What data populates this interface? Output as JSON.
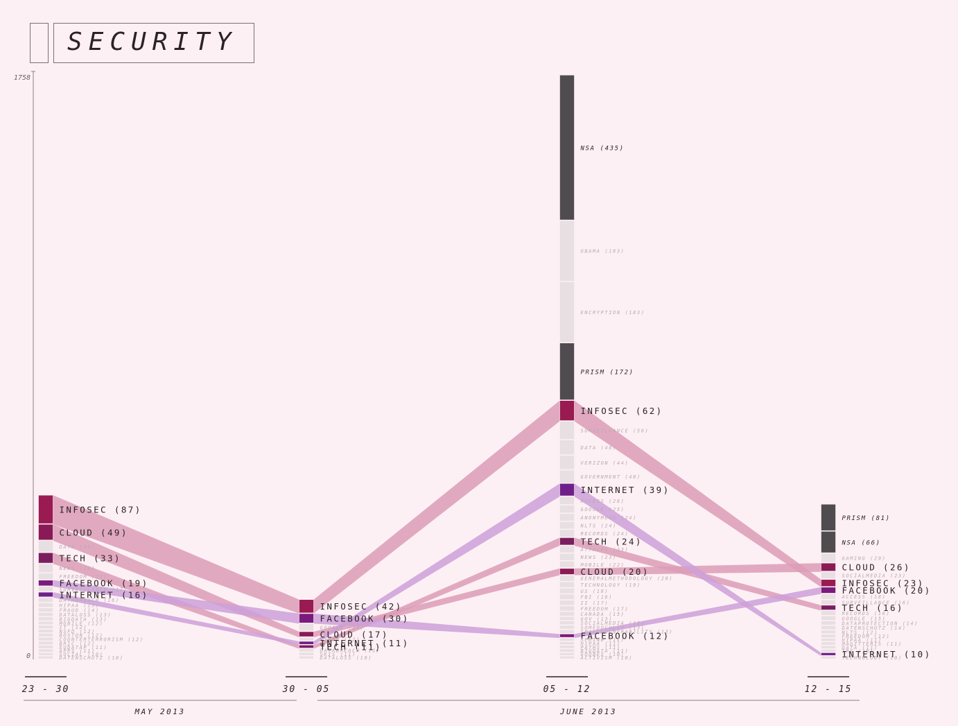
{
  "title": "SECURITY",
  "chart_data": {
    "type": "bump-stream",
    "ylim": [
      0,
      1758
    ],
    "y_tick_labels": [
      "1758",
      "0"
    ],
    "colors": {
      "infosec": "#9a1a52",
      "cloud": "#8a1a55",
      "tech": "#7a1e5e",
      "facebook": "#7a1a7c",
      "internet": "#6e2088",
      "dark": "#4f4b4e",
      "minor": "#e8dfe2",
      "flow_pink": "#dc9cb6",
      "flow_purple": "#cca0d8"
    },
    "periods": [
      {
        "label": "23 - 30",
        "items": [
          {
            "name": "INFOSEC",
            "value": 87,
            "label": "INFOSEC (87)",
            "kind": "infosec"
          },
          {
            "name": "CLOUD",
            "value": 49,
            "label": "CLOUD (49)",
            "kind": "cloud"
          },
          {
            "name": "DATA",
            "value": 36,
            "label": "DATA (36)",
            "kind": "minor"
          },
          {
            "name": "TECH",
            "value": 33,
            "label": "TECH (33)",
            "kind": "tech"
          },
          {
            "name": "NEWS",
            "value": 28,
            "label": "NEWS (28)",
            "kind": "minor"
          },
          {
            "name": "FREEDOM",
            "value": 21,
            "label": "FREEDOM (21)",
            "kind": "minor"
          },
          {
            "name": "FACEBOOK",
            "value": 19,
            "label": "FACEBOOK (19)",
            "kind": "facebook"
          },
          {
            "name": "SURVEILLANCE",
            "value": 17,
            "label": "SURVEILLANCE (17)",
            "kind": "minor"
          },
          {
            "name": "INTERNET",
            "value": 16,
            "label": "INTERNET (16)",
            "kind": "internet"
          },
          {
            "name": "DATABREACH",
            "value": 16,
            "label": "DATABREACH (16)",
            "kind": "minor"
          },
          {
            "name": "HIPAA",
            "value": 15,
            "label": "HIPAA (15)",
            "kind": "minor"
          },
          {
            "name": "FRAUD",
            "value": 14,
            "label": "FRAUD (14)",
            "kind": "minor"
          },
          {
            "name": "DATALOSS",
            "value": 13,
            "label": "DATALOSS (13)",
            "kind": "minor"
          },
          {
            "name": "BIGDATA",
            "value": 13,
            "label": "BIGDATA (13)",
            "kind": "minor"
          },
          {
            "name": "MOBILE",
            "value": 12,
            "label": "MOBILE (12)",
            "kind": "minor"
          },
          {
            "name": "IT",
            "value": 12,
            "label": "IT (12)",
            "kind": "minor"
          },
          {
            "name": "NSFD",
            "value": 12,
            "label": "NSFD (12)",
            "kind": "minor"
          },
          {
            "name": "BOSTON",
            "value": 12,
            "label": "BOSTON (12)",
            "kind": "minor"
          },
          {
            "name": "COUNTERTERRORISM",
            "value": 12,
            "label": "COUNTERTERRORISM (12)",
            "kind": "minor"
          },
          {
            "name": "BRIC",
            "value": 12,
            "label": "BRIC (12)",
            "kind": "minor"
          },
          {
            "name": "EUDATAP",
            "value": 11,
            "label": "EUDATAP (11)",
            "kind": "minor"
          },
          {
            "name": "APPS",
            "value": 11,
            "label": "APPS (11)",
            "kind": "minor"
          },
          {
            "name": "SOCIAL",
            "value": 10,
            "label": "SOCIAL (10)",
            "kind": "minor"
          },
          {
            "name": "DATENSCHUTZ",
            "value": 10,
            "label": "DATENSCHUTZ (10)",
            "kind": "minor"
          }
        ]
      },
      {
        "label": "30 - 05",
        "items": [
          {
            "name": "INFOSEC",
            "value": 42,
            "label": "INFOSEC (42)",
            "kind": "infosec"
          },
          {
            "name": "FACEBOOK",
            "value": 30,
            "label": "FACEBOOK (30)",
            "kind": "facebook"
          },
          {
            "name": "GOOGLE",
            "value": 24,
            "label": "GOOGLE (24)",
            "kind": "minor"
          },
          {
            "name": "CLOUD",
            "value": 17,
            "label": "CLOUD (17)",
            "kind": "cloud"
          },
          {
            "name": "CYBER",
            "value": 12,
            "label": "CYBER (12)",
            "kind": "minor"
          },
          {
            "name": "INTERNET",
            "value": 11,
            "label": "INTERNET (11)",
            "kind": "internet"
          },
          {
            "name": "TECH",
            "value": 11,
            "label": "TECH (11)",
            "kind": "tech"
          },
          {
            "name": "DATABREACH",
            "value": 11,
            "label": "DATABREACH (11)",
            "kind": "minor"
          },
          {
            "name": "SKIS",
            "value": 11,
            "label": "SKIS (11)",
            "kind": "minor"
          },
          {
            "name": "DATALOSS",
            "value": 10,
            "label": "DATALOSS (10)",
            "kind": "minor"
          }
        ]
      },
      {
        "label": "05 - 12",
        "items": [
          {
            "name": "NSA",
            "value": 435,
            "label": "NSA (435)",
            "kind": "dark"
          },
          {
            "name": "OBAMA",
            "value": 183,
            "label": "OBAMA (183)",
            "kind": "minor"
          },
          {
            "name": "ENCRYPTION",
            "value": 183,
            "label": "ENCRYPTION (183)",
            "kind": "minor"
          },
          {
            "name": "PRISM",
            "value": 172,
            "label": "PRISM (172)",
            "kind": "dark"
          },
          {
            "name": "INFOSEC",
            "value": 62,
            "label": "INFOSEC (62)",
            "kind": "infosec"
          },
          {
            "name": "SURVEILLANCE",
            "value": 56,
            "label": "SURVEILLANCE (56)",
            "kind": "minor"
          },
          {
            "name": "DATA",
            "value": 46,
            "label": "DATA (46)",
            "kind": "minor"
          },
          {
            "name": "VERIZON",
            "value": 44,
            "label": "VERIZON (44)",
            "kind": "minor"
          },
          {
            "name": "GOVERNMENT",
            "value": 40,
            "label": "GOVERNMENT (40)",
            "kind": "minor"
          },
          {
            "name": "INTERNET",
            "value": 39,
            "label": "INTERNET (39)",
            "kind": "internet"
          },
          {
            "name": "ACCESS",
            "value": 26,
            "label": "ACCESS (26)",
            "kind": "minor"
          },
          {
            "name": "GOOGLE",
            "value": 25,
            "label": "GOOGLE (25)",
            "kind": "minor"
          },
          {
            "name": "ANONYMOUS",
            "value": 24,
            "label": "ANONYMOUS (24)",
            "kind": "minor"
          },
          {
            "name": "NLTS",
            "value": 24,
            "label": "NLTS (24)",
            "kind": "minor"
          },
          {
            "name": "RECORDS",
            "value": 24,
            "label": "RECORDS (24)",
            "kind": "minor"
          },
          {
            "name": "TECH",
            "value": 24,
            "label": "TECH (24)",
            "kind": "tech"
          },
          {
            "name": "ATTACKS",
            "value": 23,
            "label": "ATTACKS (23)",
            "kind": "minor"
          },
          {
            "name": "NEWS",
            "value": 23,
            "label": "NEWS (23)",
            "kind": "minor"
          },
          {
            "name": "MOBILE",
            "value": 22,
            "label": "MOBILE (22)",
            "kind": "minor"
          },
          {
            "name": "CLOUD",
            "value": 20,
            "label": "CLOUD (20)",
            "kind": "cloud"
          },
          {
            "name": "GENERALMETHODOLOGY",
            "value": 20,
            "label": "GENERALMETHODOLOGY (20)",
            "kind": "minor"
          },
          {
            "name": "TECHNOLOGY",
            "value": 19,
            "label": "TECHNOLOGY (19)",
            "kind": "minor"
          },
          {
            "name": "US",
            "value": 18,
            "label": "US (18)",
            "kind": "minor"
          },
          {
            "name": "FBI",
            "value": 18,
            "label": "FBI (18)",
            "kind": "minor"
          },
          {
            "name": "II",
            "value": 17,
            "label": "II (17)",
            "kind": "minor"
          },
          {
            "name": "FREEDOM",
            "value": 17,
            "label": "FREEDOM (17)",
            "kind": "minor"
          },
          {
            "name": "CANADA",
            "value": 15,
            "label": "CANADA (15)",
            "kind": "minor"
          },
          {
            "name": "GOV",
            "value": 13,
            "label": "GOV (13)",
            "kind": "minor"
          },
          {
            "name": "SOCIALMEDIA",
            "value": 13,
            "label": "SOCIALMEDIA (13)",
            "kind": "minor"
          },
          {
            "name": "SOMEDOCULTS",
            "value": 13,
            "label": "SOMEDOCULTS (13)",
            "kind": "minor"
          },
          {
            "name": "SMALLVULNERABILITY",
            "value": 13,
            "label": "SMALLVULNERABILITY (13)",
            "kind": "minor"
          },
          {
            "name": "FACEBOOK",
            "value": 12,
            "label": "FACEBOOK (12)",
            "kind": "facebook"
          },
          {
            "name": "SPRING",
            "value": 11,
            "label": "SPRING (11)",
            "kind": "minor"
          },
          {
            "name": "HIPAA",
            "value": 11,
            "label": "HIPAA (11)",
            "kind": "minor"
          },
          {
            "name": "PATHS",
            "value": 11,
            "label": "PATHS (11)",
            "kind": "minor"
          },
          {
            "name": "BIGDATA",
            "value": 11,
            "label": "BIGDATA (11)",
            "kind": "minor"
          },
          {
            "name": "GOOBES",
            "value": 10,
            "label": "GOOBES (10)",
            "kind": "minor"
          },
          {
            "name": "ACTIVISM",
            "value": 10,
            "label": "ACTIVISM (10)",
            "kind": "minor"
          }
        ]
      },
      {
        "label": "12 - 15",
        "items": [
          {
            "name": "PRISM",
            "value": 81,
            "label": "PRISM (81)",
            "kind": "dark"
          },
          {
            "name": "NSA",
            "value": 66,
            "label": "NSA (66)",
            "kind": "dark"
          },
          {
            "name": "GAMING",
            "value": 29,
            "label": "GAMING (29)",
            "kind": "minor"
          },
          {
            "name": "CLOUD",
            "value": 26,
            "label": "CLOUD (26)",
            "kind": "cloud"
          },
          {
            "name": "SOCIALMEDIA",
            "value": 23,
            "label": "SOCIALMEDIA (23)",
            "kind": "minor"
          },
          {
            "name": "INFOSEC",
            "value": 23,
            "label": "INFOSEC (23)",
            "kind": "infosec"
          },
          {
            "name": "FACEBOOK",
            "value": 20,
            "label": "FACEBOOK (20)",
            "kind": "facebook"
          },
          {
            "name": "ACCESS",
            "value": 18,
            "label": "ACCESS (18)",
            "kind": "minor"
          },
          {
            "name": "SURVEILLANCE",
            "value": 16,
            "label": "SURVEILLANCE (16)",
            "kind": "minor"
          },
          {
            "name": "TECH",
            "value": 16,
            "label": "TECH (16)",
            "kind": "tech"
          },
          {
            "name": "RECORDS",
            "value": 16,
            "label": "RECORDS (16)",
            "kind": "minor"
          },
          {
            "name": "GOOGLE",
            "value": 15,
            "label": "GOOGLE (15)",
            "kind": "minor"
          },
          {
            "name": "DATAPROTECTION",
            "value": 14,
            "label": "DATAPROTECTION (14)",
            "kind": "minor"
          },
          {
            "name": "DATENSCHUTZ",
            "value": 14,
            "label": "DATENSCHUTZ (14)",
            "kind": "minor"
          },
          {
            "name": "NLTS",
            "value": 12,
            "label": "NLTS (12)",
            "kind": "minor"
          },
          {
            "name": "FREEDOM",
            "value": 12,
            "label": "FREEDOM (12)",
            "kind": "minor"
          },
          {
            "name": "HIPAA",
            "value": 11,
            "label": "HIPAA (11)",
            "kind": "minor"
          },
          {
            "name": "MAGITTERIS",
            "value": 11,
            "label": "MAGITTERIS (11)",
            "kind": "minor"
          },
          {
            "name": "DATA",
            "value": 11,
            "label": "DATA (11)",
            "kind": "minor"
          },
          {
            "name": "IRS",
            "value": 10,
            "label": "IRS (10)",
            "kind": "minor"
          },
          {
            "name": "INTERNET",
            "value": 10,
            "label": "INTERNET (10)",
            "kind": "internet"
          },
          {
            "name": "TECHNOLOGY",
            "value": 10,
            "label": "TECHNOLOGY (10)",
            "kind": "minor"
          }
        ]
      }
    ],
    "tracked": [
      "INFOSEC",
      "CLOUD",
      "TECH",
      "FACEBOOK",
      "INTERNET"
    ],
    "month_labels": [
      {
        "label": "MAY 2013",
        "from_period": 0,
        "to_period": 0
      },
      {
        "label": "JUNE 2013",
        "from_period": 1,
        "to_period": 3
      }
    ]
  }
}
